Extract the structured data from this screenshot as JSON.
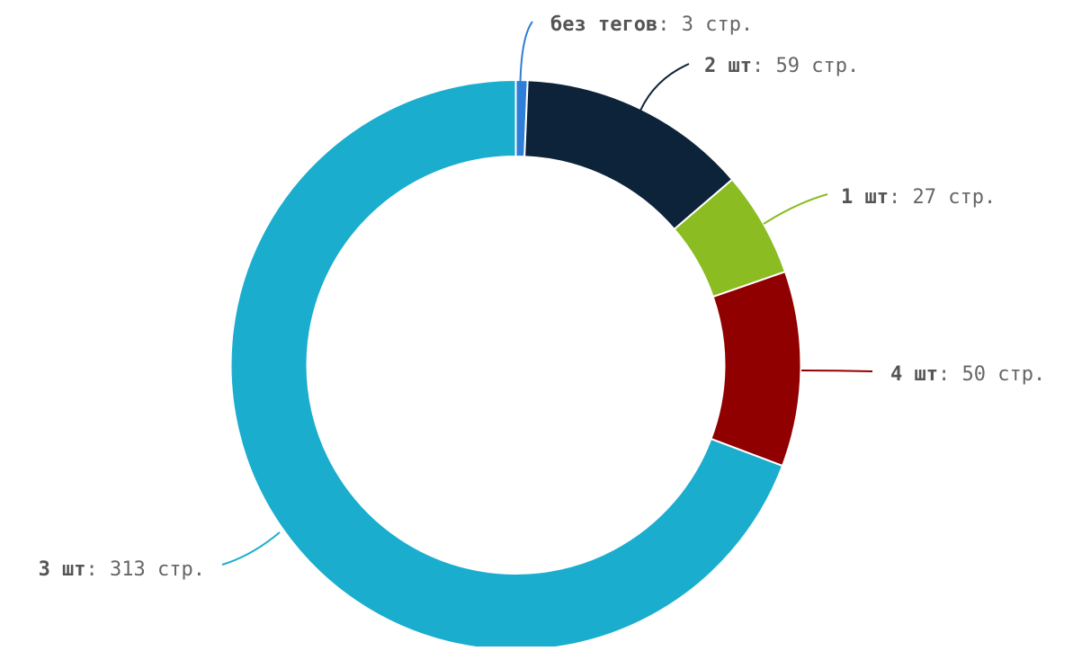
{
  "chart_data": {
    "type": "pie",
    "variant": "donut",
    "value_suffix": " стр.",
    "slices": [
      {
        "name": "без тегов",
        "value": 3,
        "color": "#2f7ed8"
      },
      {
        "name": "2 шт",
        "value": 59,
        "color": "#0d233a"
      },
      {
        "name": "1 шт",
        "value": 27,
        "color": "#8bbc21"
      },
      {
        "name": "4 шт",
        "value": 50,
        "color": "#910000"
      },
      {
        "name": "3 шт",
        "value": 313,
        "color": "#1aadce"
      }
    ]
  }
}
